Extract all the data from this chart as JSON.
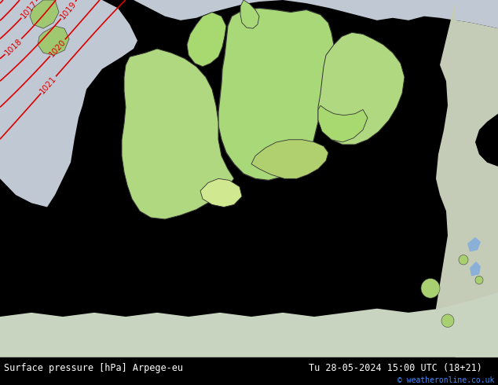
{
  "title_left": "Surface pressure [hPa] Arpege-eu",
  "title_right": "Tu 28-05-2024 15:00 UTC (18+21)",
  "copyright": "© weatheronline.co.uk",
  "figsize": [
    6.34,
    4.9
  ],
  "dpi": 100,
  "sea_color": "#c8ccd4",
  "land_color": "#b8e090",
  "land_color2": "#a8d870",
  "mountain_color": "#e8f0d0",
  "footer_bg": "#000000",
  "red_color": "#dd0000",
  "blue_color": "#0055cc",
  "black_color": "#000000",
  "gray_color": "#888888"
}
